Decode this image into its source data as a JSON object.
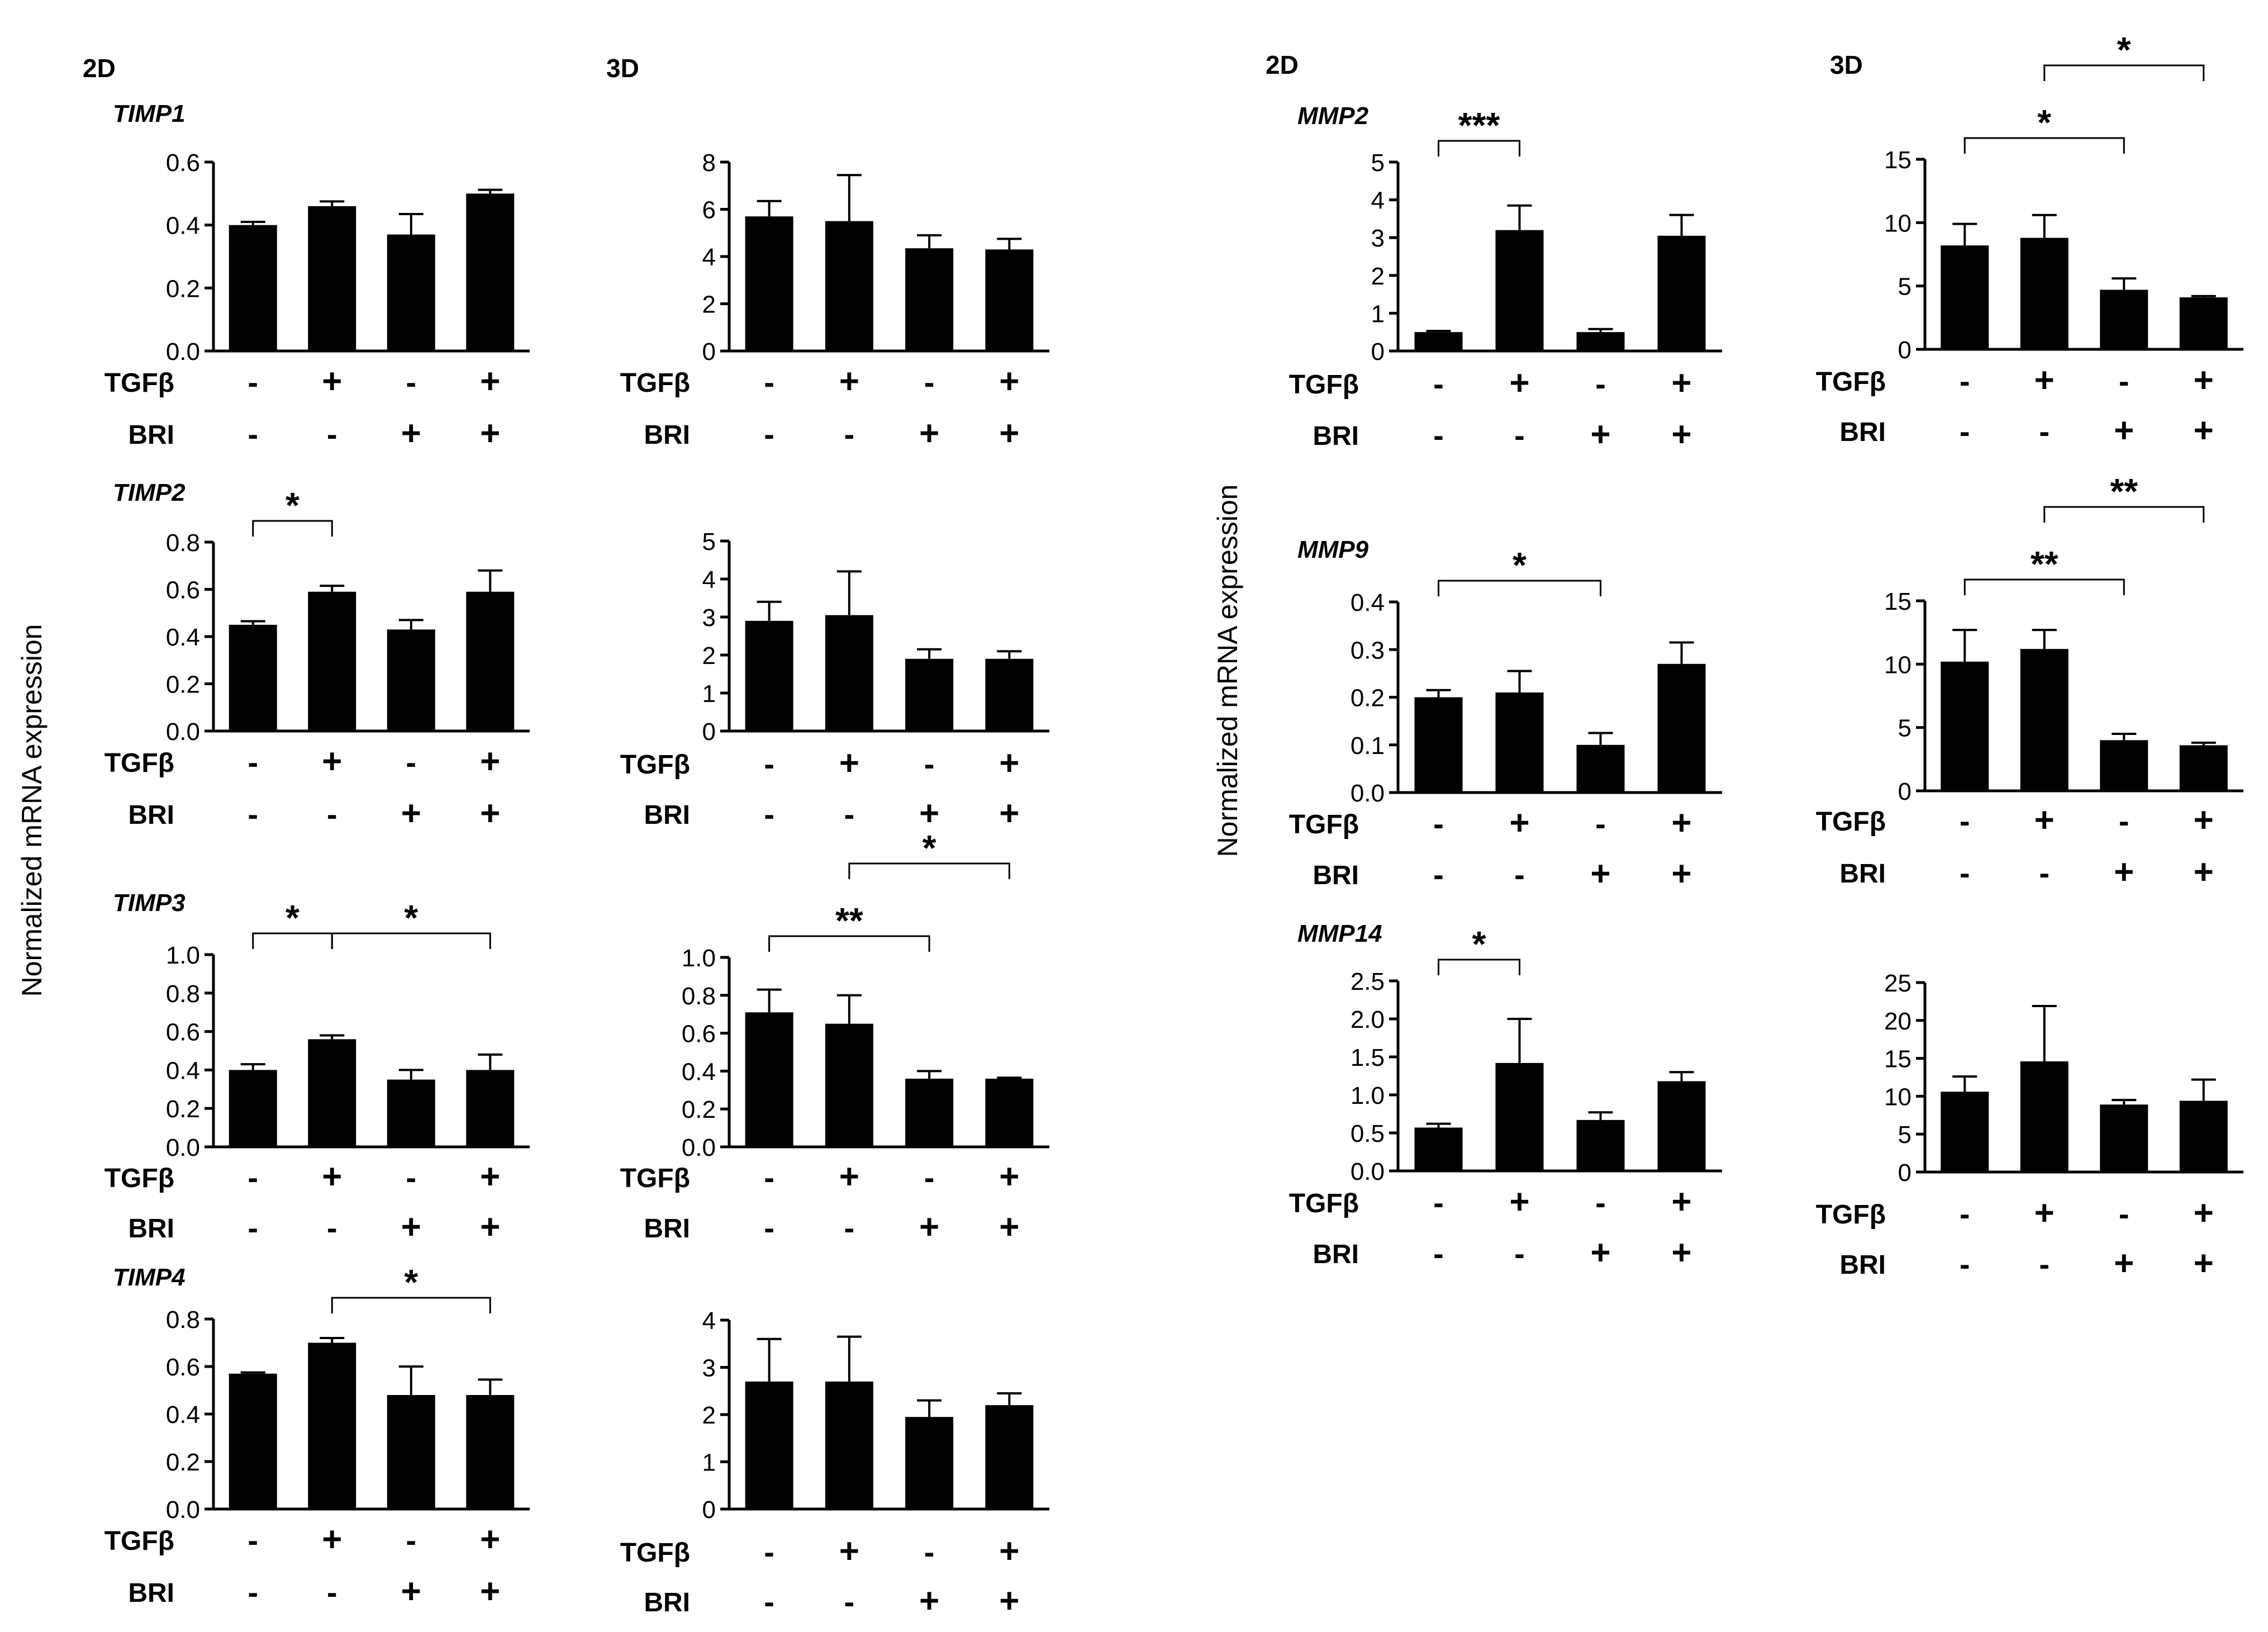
{
  "figure": {
    "left_y_label": "Normalized mRNA expression",
    "right_y_label": "Normalized mRNA expression",
    "col_2d_left": "2D",
    "col_3d_left": "3D",
    "col_2d_right": "2D",
    "col_3d_right": "3D",
    "row_labels": {
      "tgf": "TGFβ",
      "bri": "BRI"
    },
    "signs": {
      "plus": "+",
      "minus": "-"
    }
  },
  "chart_data": [
    {
      "id": "timp1_2d",
      "type": "bar",
      "gene": "TIMP1",
      "condition": "2D",
      "categories": [
        "TGFβ-/BRI-",
        "TGFβ+/BRI-",
        "TGFβ-/BRI+",
        "TGFβ+/BRI+"
      ],
      "tgf": [
        "-",
        "+",
        "-",
        "+"
      ],
      "bri": [
        "-",
        "-",
        "+",
        "+"
      ],
      "values": [
        0.4,
        0.46,
        0.37,
        0.5
      ],
      "errors": [
        0.01,
        0.015,
        0.065,
        0.012
      ],
      "ylim": [
        0,
        0.6
      ],
      "yticks": [
        "0.0",
        "0.2",
        "0.4",
        "0.6"
      ],
      "significance": []
    },
    {
      "id": "timp1_3d",
      "type": "bar",
      "gene": "",
      "condition": "3D",
      "categories": [
        "TGFβ-/BRI-",
        "TGFβ+/BRI-",
        "TGFβ-/BRI+",
        "TGFβ+/BRI+"
      ],
      "tgf": [
        "-",
        "+",
        "-",
        "+"
      ],
      "bri": [
        "-",
        "-",
        "+",
        "+"
      ],
      "values": [
        5.7,
        5.5,
        4.35,
        4.3
      ],
      "errors": [
        0.65,
        1.95,
        0.55,
        0.45
      ],
      "ylim": [
        0,
        8
      ],
      "yticks": [
        "0",
        "2",
        "4",
        "6",
        "8"
      ],
      "significance": []
    },
    {
      "id": "timp2_2d",
      "type": "bar",
      "gene": "TIMP2",
      "condition": "2D",
      "categories": [
        "TGFβ-/BRI-",
        "TGFβ+/BRI-",
        "TGFβ-/BRI+",
        "TGFβ+/BRI+"
      ],
      "tgf": [
        "-",
        "+",
        "-",
        "+"
      ],
      "bri": [
        "-",
        "-",
        "+",
        "+"
      ],
      "values": [
        0.45,
        0.59,
        0.43,
        0.59
      ],
      "errors": [
        0.015,
        0.025,
        0.04,
        0.09
      ],
      "ylim": [
        0,
        0.8
      ],
      "yticks": [
        "0.0",
        "0.2",
        "0.4",
        "0.6",
        "0.8"
      ],
      "significance": [
        {
          "from": 0,
          "to": 1,
          "label": "*",
          "level": 1
        }
      ]
    },
    {
      "id": "timp2_3d",
      "type": "bar",
      "gene": "",
      "condition": "3D",
      "categories": [
        "TGFβ-/BRI-",
        "TGFβ+/BRI-",
        "TGFβ-/BRI+",
        "TGFβ+/BRI+"
      ],
      "tgf": [
        "-",
        "+",
        "-",
        "+"
      ],
      "bri": [
        "-",
        "-",
        "+",
        "+"
      ],
      "values": [
        2.9,
        3.05,
        1.9,
        1.9
      ],
      "errors": [
        0.5,
        1.15,
        0.25,
        0.2
      ],
      "ylim": [
        0,
        5
      ],
      "yticks": [
        "0",
        "1",
        "2",
        "3",
        "4",
        "5"
      ],
      "significance": []
    },
    {
      "id": "timp3_2d",
      "type": "bar",
      "gene": "TIMP3",
      "condition": "2D",
      "categories": [
        "TGFβ-/BRI-",
        "TGFβ+/BRI-",
        "TGFβ-/BRI+",
        "TGFβ+/BRI+"
      ],
      "tgf": [
        "-",
        "+",
        "-",
        "+"
      ],
      "bri": [
        "-",
        "-",
        "+",
        "+"
      ],
      "values": [
        0.4,
        0.56,
        0.35,
        0.4
      ],
      "errors": [
        0.03,
        0.02,
        0.05,
        0.08
      ],
      "ylim": [
        0,
        1.0
      ],
      "yticks": [
        "0.0",
        "0.2",
        "0.4",
        "0.6",
        "0.8",
        "1.0"
      ],
      "significance": [
        {
          "from": 0,
          "to": 1,
          "label": "*",
          "level": 1
        },
        {
          "from": 1,
          "to": 3,
          "label": "*",
          "level": 1
        }
      ]
    },
    {
      "id": "timp3_3d",
      "type": "bar",
      "gene": "",
      "condition": "3D",
      "categories": [
        "TGFβ-/BRI-",
        "TGFβ+/BRI-",
        "TGFβ-/BRI+",
        "TGFβ+/BRI+"
      ],
      "tgf": [
        "-",
        "+",
        "-",
        "+"
      ],
      "bri": [
        "-",
        "-",
        "+",
        "+"
      ],
      "values": [
        0.71,
        0.65,
        0.36,
        0.36
      ],
      "errors": [
        0.12,
        0.15,
        0.04,
        0.005
      ],
      "ylim": [
        0,
        1.0
      ],
      "yticks": [
        "0.0",
        "0.2",
        "0.4",
        "0.6",
        "0.8",
        "1.0"
      ],
      "significance": [
        {
          "from": 0,
          "to": 2,
          "label": "**",
          "level": 1
        },
        {
          "from": 1,
          "to": 3,
          "label": "*",
          "level": 2
        }
      ]
    },
    {
      "id": "timp4_2d",
      "type": "bar",
      "gene": "TIMP4",
      "condition": "2D",
      "categories": [
        "TGFβ-/BRI-",
        "TGFβ+/BRI-",
        "TGFβ-/BRI+",
        "TGFβ+/BRI+"
      ],
      "tgf": [
        "-",
        "+",
        "-",
        "+"
      ],
      "bri": [
        "-",
        "-",
        "+",
        "+"
      ],
      "values": [
        0.57,
        0.7,
        0.48,
        0.48
      ],
      "errors": [
        0.005,
        0.02,
        0.12,
        0.065
      ],
      "ylim": [
        0,
        0.8
      ],
      "yticks": [
        "0.0",
        "0.2",
        "0.4",
        "0.6",
        "0.8"
      ],
      "significance": [
        {
          "from": 1,
          "to": 3,
          "label": "*",
          "level": 1
        }
      ]
    },
    {
      "id": "timp4_3d",
      "type": "bar",
      "gene": "",
      "condition": "3D",
      "categories": [
        "TGFβ-/BRI-",
        "TGFβ+/BRI-",
        "TGFβ-/BRI+",
        "TGFβ+/BRI+"
      ],
      "tgf": [
        "-",
        "+",
        "-",
        "+"
      ],
      "bri": [
        "-",
        "-",
        "+",
        "+"
      ],
      "values": [
        2.7,
        2.7,
        1.95,
        2.2
      ],
      "errors": [
        0.9,
        0.95,
        0.35,
        0.25
      ],
      "ylim": [
        0,
        4
      ],
      "yticks": [
        "0",
        "1",
        "2",
        "3",
        "4"
      ],
      "significance": []
    },
    {
      "id": "mmp2_2d",
      "type": "bar",
      "gene": "MMP2",
      "condition": "2D",
      "categories": [
        "TGFβ-/BRI-",
        "TGFβ+/BRI-",
        "TGFβ-/BRI+",
        "TGFβ+/BRI+"
      ],
      "tgf": [
        "-",
        "+",
        "-",
        "+"
      ],
      "bri": [
        "-",
        "-",
        "+",
        "+"
      ],
      "values": [
        0.5,
        3.2,
        0.5,
        3.05
      ],
      "errors": [
        0.03,
        0.65,
        0.08,
        0.55
      ],
      "ylim": [
        0,
        5
      ],
      "yticks": [
        "0",
        "1",
        "2",
        "3",
        "4",
        "5"
      ],
      "significance": [
        {
          "from": 0,
          "to": 1,
          "label": "***",
          "level": 1
        }
      ]
    },
    {
      "id": "mmp2_3d",
      "type": "bar",
      "gene": "",
      "condition": "3D",
      "categories": [
        "TGFβ-/BRI-",
        "TGFβ+/BRI-",
        "TGFβ-/BRI+",
        "TGFβ+/BRI+"
      ],
      "tgf": [
        "-",
        "+",
        "-",
        "+"
      ],
      "bri": [
        "-",
        "-",
        "+",
        "+"
      ],
      "values": [
        8.2,
        8.8,
        4.7,
        4.1
      ],
      "errors": [
        1.7,
        1.8,
        0.9,
        0.1
      ],
      "ylim": [
        0,
        15
      ],
      "yticks": [
        "0",
        "5",
        "10",
        "15"
      ],
      "significance": [
        {
          "from": 0,
          "to": 2,
          "label": "*",
          "level": 1
        },
        {
          "from": 1,
          "to": 3,
          "label": "*",
          "level": 2
        }
      ]
    },
    {
      "id": "mmp9_2d",
      "type": "bar",
      "gene": "MMP9",
      "condition": "2D",
      "categories": [
        "TGFβ-/BRI-",
        "TGFβ+/BRI-",
        "TGFβ-/BRI+",
        "TGFβ+/BRI+"
      ],
      "tgf": [
        "-",
        "+",
        "-",
        "+"
      ],
      "bri": [
        "-",
        "-",
        "+",
        "+"
      ],
      "values": [
        0.2,
        0.21,
        0.1,
        0.27
      ],
      "errors": [
        0.015,
        0.045,
        0.025,
        0.045
      ],
      "ylim": [
        0,
        0.4
      ],
      "yticks": [
        "0.0",
        "0.1",
        "0.2",
        "0.3",
        "0.4"
      ],
      "significance": [
        {
          "from": 0,
          "to": 2,
          "label": "*",
          "level": 1
        }
      ]
    },
    {
      "id": "mmp9_3d",
      "type": "bar",
      "gene": "",
      "condition": "3D",
      "categories": [
        "TGFβ-/BRI-",
        "TGFβ+/BRI-",
        "TGFβ-/BRI+",
        "TGFβ+/BRI+"
      ],
      "tgf": [
        "-",
        "+",
        "-",
        "+"
      ],
      "bri": [
        "-",
        "-",
        "+",
        "+"
      ],
      "values": [
        10.2,
        11.2,
        4.0,
        3.6
      ],
      "errors": [
        2.5,
        1.5,
        0.5,
        0.2
      ],
      "ylim": [
        0,
        15
      ],
      "yticks": [
        "0",
        "5",
        "10",
        "15"
      ],
      "significance": [
        {
          "from": 0,
          "to": 2,
          "label": "**",
          "level": 1
        },
        {
          "from": 1,
          "to": 3,
          "label": "**",
          "level": 2
        }
      ]
    },
    {
      "id": "mmp14_2d",
      "type": "bar",
      "gene": "MMP14",
      "condition": "2D",
      "categories": [
        "TGFβ-/BRI-",
        "TGFβ+/BRI-",
        "TGFβ-/BRI+",
        "TGFβ+/BRI+"
      ],
      "tgf": [
        "-",
        "+",
        "-",
        "+"
      ],
      "bri": [
        "-",
        "-",
        "+",
        "+"
      ],
      "values": [
        0.57,
        1.42,
        0.67,
        1.18
      ],
      "errors": [
        0.05,
        0.58,
        0.1,
        0.12
      ],
      "ylim": [
        0,
        2.5
      ],
      "yticks": [
        "0.0",
        "0.5",
        "1.0",
        "1.5",
        "2.0",
        "2.5"
      ],
      "significance": [
        {
          "from": 0,
          "to": 1,
          "label": "*",
          "level": 1
        }
      ]
    },
    {
      "id": "mmp14_3d",
      "type": "bar",
      "gene": "",
      "condition": "3D",
      "categories": [
        "TGFβ-/BRI-",
        "TGFβ+/BRI-",
        "TGFβ-/BRI+",
        "TGFβ+/BRI+"
      ],
      "tgf": [
        "-",
        "+",
        "-",
        "+"
      ],
      "bri": [
        "-",
        "-",
        "+",
        "+"
      ],
      "values": [
        10.6,
        14.6,
        8.9,
        9.4
      ],
      "errors": [
        2.0,
        7.3,
        0.6,
        2.8
      ],
      "ylim": [
        0,
        25
      ],
      "yticks": [
        "0",
        "5",
        "10",
        "15",
        "20",
        "25"
      ],
      "significance": []
    }
  ]
}
